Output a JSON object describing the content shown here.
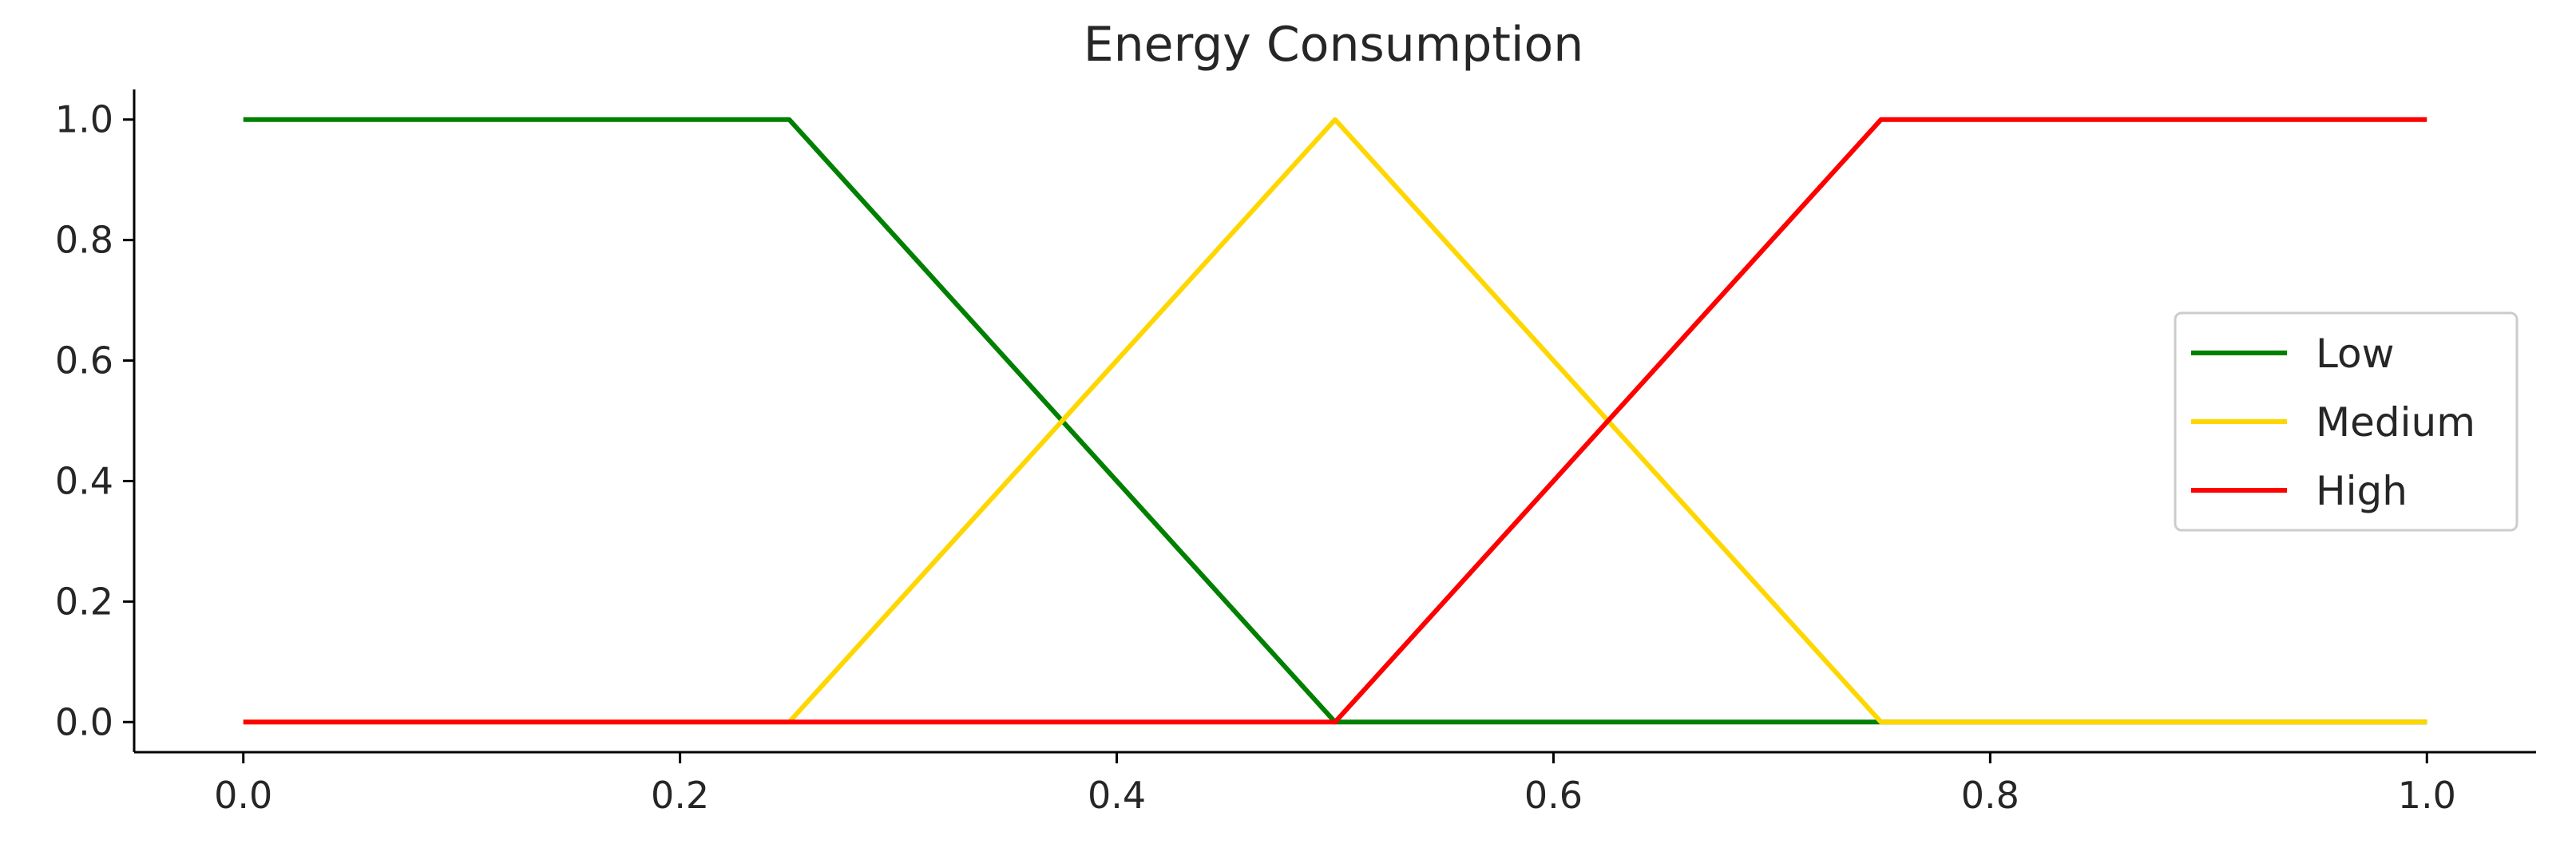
{
  "chart_data": {
    "type": "line",
    "title": "Energy Consumption",
    "xlabel": "",
    "ylabel": "",
    "xlim": [
      -0.05,
      1.05
    ],
    "ylim": [
      -0.05,
      1.05
    ],
    "x_ticks": [
      0.0,
      0.2,
      0.4,
      0.6,
      0.8,
      1.0
    ],
    "x_tick_labels": [
      "0.0",
      "0.2",
      "0.4",
      "0.6",
      "0.8",
      "1.0"
    ],
    "y_ticks": [
      0.0,
      0.2,
      0.4,
      0.6,
      0.8,
      1.0
    ],
    "y_tick_labels": [
      "0.0",
      "0.2",
      "0.4",
      "0.6",
      "0.8",
      "1.0"
    ],
    "grid": false,
    "legend_position": "center-right",
    "series": [
      {
        "name": "Low",
        "color": "#008000",
        "x": [
          0.0,
          0.25,
          0.5,
          0.75,
          1.0
        ],
        "y": [
          1.0,
          1.0,
          0.0,
          0.0,
          0.0
        ]
      },
      {
        "name": "Medium",
        "color": "#FFD700",
        "x": [
          0.0,
          0.25,
          0.5,
          0.75,
          1.0
        ],
        "y": [
          0.0,
          0.0,
          1.0,
          0.0,
          0.0
        ]
      },
      {
        "name": "High",
        "color": "#FF0000",
        "x": [
          0.0,
          0.25,
          0.5,
          0.75,
          1.0
        ],
        "y": [
          0.0,
          0.0,
          0.0,
          1.0,
          1.0
        ]
      }
    ]
  }
}
